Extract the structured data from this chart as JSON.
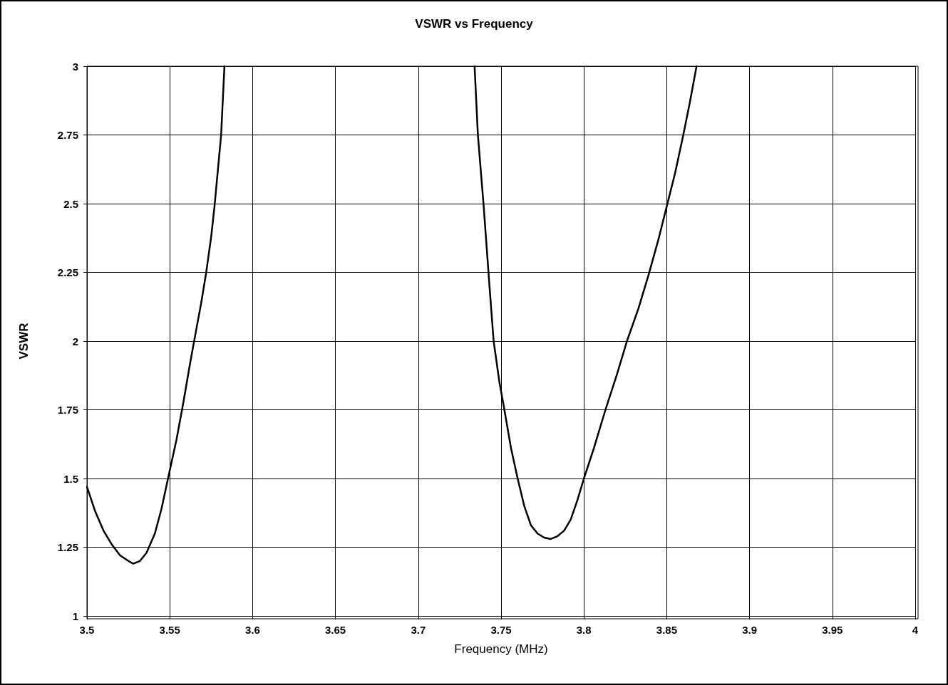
{
  "chart_data": {
    "type": "line",
    "title": "VSWR vs Frequency",
    "xlabel": "Frequency (MHz)",
    "ylabel": "VSWR",
    "series": [
      {
        "color": "#000000",
        "x": [
          3.5,
          3.505,
          3.51,
          3.515,
          3.52,
          3.525,
          3.528,
          3.532,
          3.536,
          3.541,
          3.545,
          3.55,
          3.554,
          3.558,
          3.562,
          3.565,
          3.569,
          3.572,
          3.575,
          3.577,
          3.579,
          3.581,
          3.583
        ],
        "values": [
          1.47,
          1.38,
          1.31,
          1.26,
          1.22,
          1.2,
          1.19,
          1.2,
          1.23,
          1.3,
          1.39,
          1.53,
          1.64,
          1.77,
          1.91,
          2.01,
          2.14,
          2.25,
          2.38,
          2.49,
          2.62,
          2.75,
          3
        ]
      },
      {
        "color": "#000000",
        "x": [
          3.734,
          3.736,
          3.7395,
          3.743,
          3.7455,
          3.749,
          3.752,
          3.756,
          3.76,
          3.764,
          3.768,
          3.772,
          3.776,
          3.78,
          3.784,
          3.788,
          3.792,
          3.796,
          3.8,
          3.806,
          3.813,
          3.82,
          3.826,
          3.833,
          3.839,
          3.845,
          3.85,
          3.855,
          3.86,
          3.864,
          3.868
        ],
        "values": [
          3,
          2.75,
          2.49,
          2.2,
          2,
          1.85,
          1.75,
          1.61,
          1.5,
          1.4,
          1.33,
          1.3,
          1.285,
          1.28,
          1.29,
          1.31,
          1.35,
          1.42,
          1.5,
          1.61,
          1.75,
          1.88,
          2,
          2.12,
          2.24,
          2.37,
          2.49,
          2.61,
          2.75,
          2.87,
          3
        ]
      }
    ],
    "xlim": [
      3.5,
      4
    ],
    "xticks": [
      3.5,
      3.55,
      3.6,
      3.65,
      3.7,
      3.75,
      3.8,
      3.85,
      3.9,
      3.95,
      4
    ],
    "ylim": [
      1,
      3
    ],
    "yticks": [
      1,
      1.25,
      1.5,
      1.75,
      2,
      2.25,
      2.5,
      2.75,
      3
    ],
    "grid": true,
    "marker": "none",
    "line_style": "solid"
  }
}
